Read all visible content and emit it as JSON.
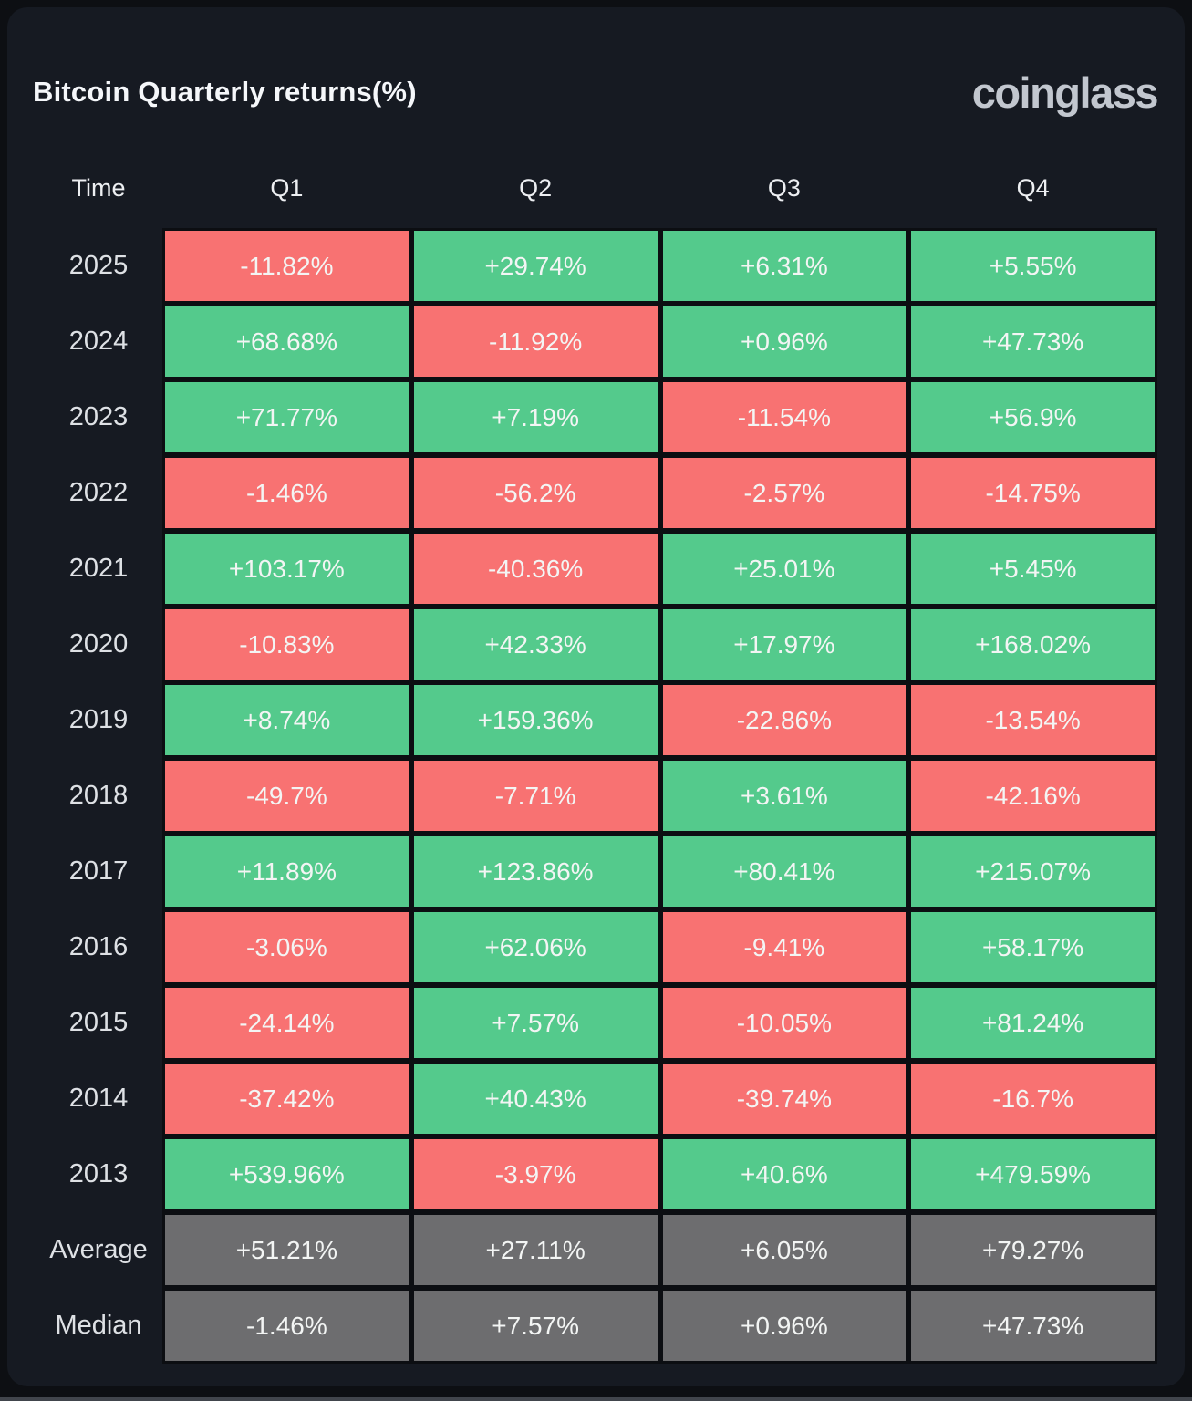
{
  "header": {
    "title": "Bitcoin Quarterly returns(%)",
    "logo_text": "coinglass"
  },
  "chart_data": {
    "type": "table",
    "title": "Bitcoin Quarterly returns(%)",
    "columns": [
      "Time",
      "Q1",
      "Q2",
      "Q3",
      "Q4"
    ],
    "rows": [
      {
        "label": "2025",
        "summary": false,
        "values": [
          "-11.82%",
          "+29.74%",
          "+6.31%",
          "+5.55%"
        ]
      },
      {
        "label": "2024",
        "summary": false,
        "values": [
          "+68.68%",
          "-11.92%",
          "+0.96%",
          "+47.73%"
        ]
      },
      {
        "label": "2023",
        "summary": false,
        "values": [
          "+71.77%",
          "+7.19%",
          "-11.54%",
          "+56.9%"
        ]
      },
      {
        "label": "2022",
        "summary": false,
        "values": [
          "-1.46%",
          "-56.2%",
          "-2.57%",
          "-14.75%"
        ]
      },
      {
        "label": "2021",
        "summary": false,
        "values": [
          "+103.17%",
          "-40.36%",
          "+25.01%",
          "+5.45%"
        ]
      },
      {
        "label": "2020",
        "summary": false,
        "values": [
          "-10.83%",
          "+42.33%",
          "+17.97%",
          "+168.02%"
        ]
      },
      {
        "label": "2019",
        "summary": false,
        "values": [
          "+8.74%",
          "+159.36%",
          "-22.86%",
          "-13.54%"
        ]
      },
      {
        "label": "2018",
        "summary": false,
        "values": [
          "-49.7%",
          "-7.71%",
          "+3.61%",
          "-42.16%"
        ]
      },
      {
        "label": "2017",
        "summary": false,
        "values": [
          "+11.89%",
          "+123.86%",
          "+80.41%",
          "+215.07%"
        ]
      },
      {
        "label": "2016",
        "summary": false,
        "values": [
          "-3.06%",
          "+62.06%",
          "-9.41%",
          "+58.17%"
        ]
      },
      {
        "label": "2015",
        "summary": false,
        "values": [
          "-24.14%",
          "+7.57%",
          "-10.05%",
          "+81.24%"
        ]
      },
      {
        "label": "2014",
        "summary": false,
        "values": [
          "-37.42%",
          "+40.43%",
          "-39.74%",
          "-16.7%"
        ]
      },
      {
        "label": "2013",
        "summary": false,
        "values": [
          "+539.96%",
          "-3.97%",
          "+40.6%",
          "+479.59%"
        ]
      },
      {
        "label": "Average",
        "summary": true,
        "values": [
          "+51.21%",
          "+27.11%",
          "+6.05%",
          "+79.27%"
        ]
      },
      {
        "label": "Median",
        "summary": true,
        "values": [
          "-1.46%",
          "+7.57%",
          "+0.96%",
          "+47.73%"
        ]
      }
    ],
    "legend": "green = positive quarterly return, red = negative quarterly return, gray = summary statistic row"
  },
  "colors": {
    "positive": "#54CA8C",
    "negative": "#F87272",
    "summary": "#6D6D6F",
    "card_bg": "#161A22",
    "page_bg": "#0D0F13",
    "cell_border": "#0C0E12",
    "cell_text": "#F3F5F4",
    "label_text": "#DEE1E5",
    "title_text": "#F5F7FA",
    "logo_color": "#C2C7CF"
  }
}
